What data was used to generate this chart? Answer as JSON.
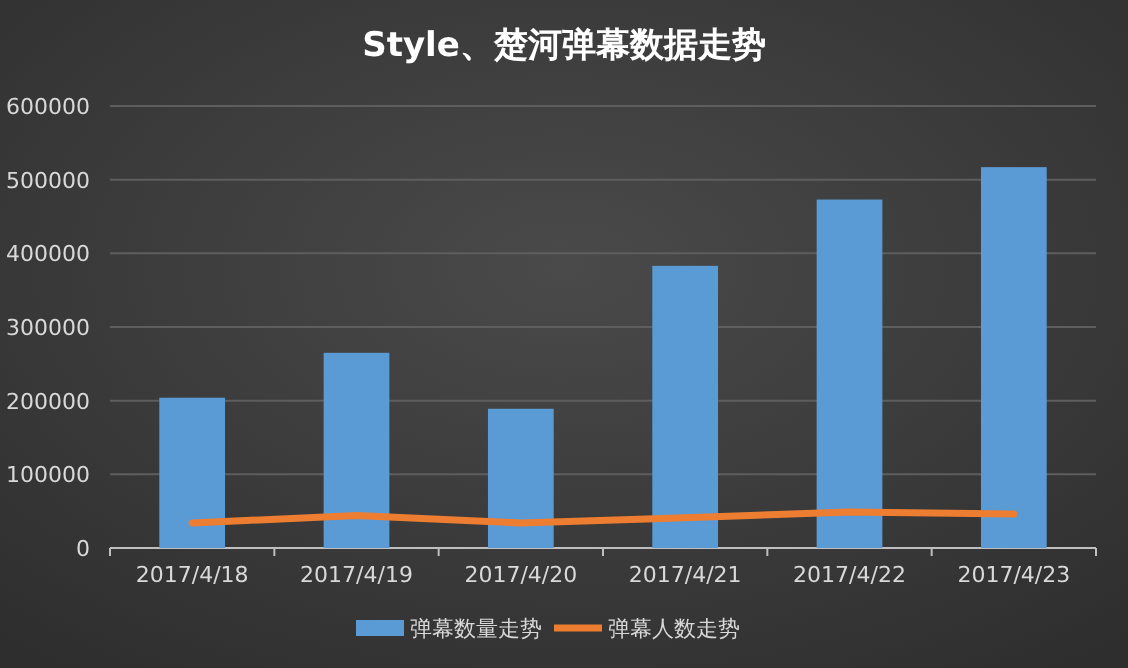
{
  "chart_data": {
    "type": "bar",
    "title": "Style、楚河弹幕数据走势",
    "categories": [
      "2017/4/18",
      "2017/4/19",
      "2017/4/20",
      "2017/4/21",
      "2017/4/22",
      "2017/4/23"
    ],
    "series": [
      {
        "name": "弹幕数量走势",
        "color": "#5b9bd5",
        "values": [
          204000,
          265000,
          189000,
          383000,
          473000,
          517000
        ]
      },
      {
        "name": "弹幕人数走势",
        "type": "line",
        "color": "#ed7d31",
        "values": [
          34000,
          44000,
          34000,
          41000,
          49000,
          46000
        ]
      }
    ],
    "ylim": [
      0,
      600000
    ],
    "yticks": [
      0,
      100000,
      200000,
      300000,
      400000,
      500000,
      600000
    ],
    "grid": "y",
    "legend": "bottom",
    "marker": "none"
  }
}
